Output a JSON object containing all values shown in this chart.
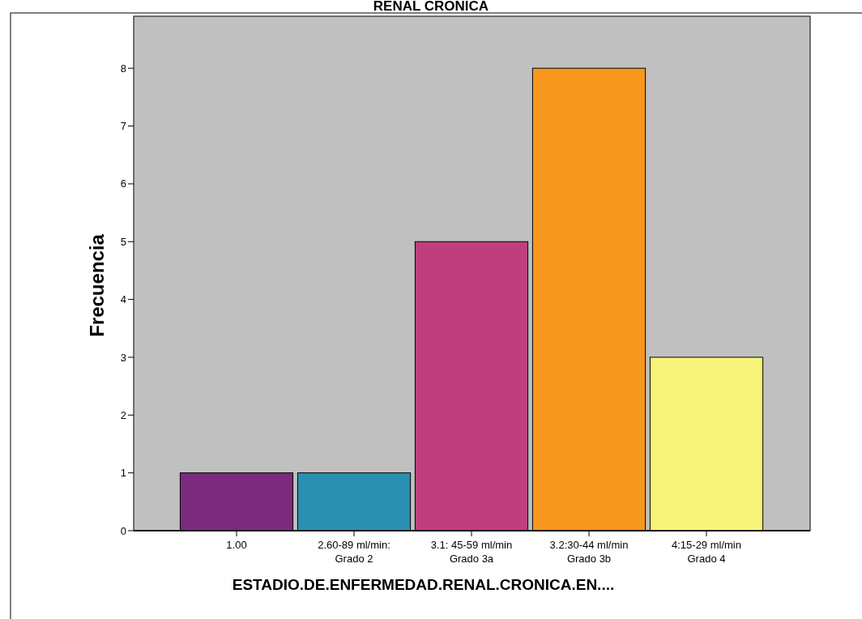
{
  "chart_data": {
    "type": "bar",
    "title": "RENAL CRONICA",
    "xlabel": "ESTADIO.DE.ENFERMEDAD.RENAL.CRONICA.EN....",
    "ylabel": "Frecuencia",
    "categories": [
      "1.00",
      "2.60-89 ml/min:\nGrado 2",
      "3.1: 45-59 ml/min\nGrado 3a",
      "3.2:30-44 ml/min\nGrado 3b",
      "4:15-29 ml/min\nGrado 4"
    ],
    "values": [
      1,
      1,
      5,
      8,
      3
    ],
    "colors": [
      "#7b2a7e",
      "#2a8fb0",
      "#bf3f7e",
      "#f7971e",
      "#f9f57a"
    ],
    "ylim": [
      0,
      8.9
    ],
    "yticks": [
      0,
      1,
      2,
      3,
      4,
      5,
      6,
      7,
      8
    ],
    "grid": false
  }
}
